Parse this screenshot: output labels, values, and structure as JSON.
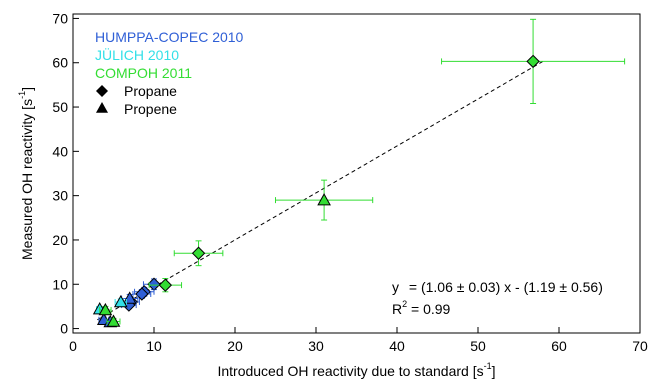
{
  "chart_data": {
    "type": "scatter",
    "xlabel": "Introduced OH reactivity due to standard [s",
    "xlabel_sup": "-1",
    "xlabel_end": "]",
    "ylabel": "Measured OH reactivity [s",
    "ylabel_sup": "-1",
    "ylabel_end": "]",
    "xlim": [
      0,
      70
    ],
    "ylim": [
      -1,
      71
    ],
    "xticks": [
      0,
      10,
      20,
      30,
      40,
      50,
      60,
      70
    ],
    "yticks": [
      0,
      10,
      20,
      30,
      40,
      50,
      60,
      70
    ],
    "legend_placement": "top-left",
    "legend": {
      "campaigns": [
        {
          "name": "HUMPPA-COPEC 2010",
          "color": "#2f5fd6"
        },
        {
          "name": "JÜLICH 2010",
          "color": "#33e0e8"
        },
        {
          "name": "COMPOH 2011",
          "color": "#33dd33"
        }
      ],
      "markers": [
        {
          "name": "Propane",
          "shape": "diamond"
        },
        {
          "name": "Propene",
          "shape": "triangle"
        }
      ]
    },
    "fit": {
      "x_range": [
        3,
        58
      ],
      "slope": 1.06,
      "intercept": -1.19,
      "equation_y": "y",
      "equation_rest": " = (1.06 ± 0.03) x - (1.19 ± 0.56)",
      "r2_label": "R",
      "r2_sup": "2",
      "r2_value": " = 0.99"
    },
    "points": [
      {
        "campaign": "HUMPPA-COPEC 2010",
        "shape": "diamond",
        "x": 10.0,
        "y": 10.0,
        "xerr": 1.3,
        "yerr": 1.2
      },
      {
        "campaign": "HUMPPA-COPEC 2010",
        "shape": "diamond",
        "x": 8.8,
        "y": 8.3,
        "xerr": 1.2,
        "yerr": 1.0
      },
      {
        "campaign": "HUMPPA-COPEC 2010",
        "shape": "diamond",
        "x": 8.5,
        "y": 7.8,
        "xerr": 1.1,
        "yerr": 1.0
      },
      {
        "campaign": "HUMPPA-COPEC 2010",
        "shape": "diamond",
        "x": 7.2,
        "y": 6.0,
        "xerr": 1.0,
        "yerr": 0.9
      },
      {
        "campaign": "HUMPPA-COPEC 2010",
        "shape": "diamond",
        "x": 6.9,
        "y": 5.3,
        "xerr": 0.9,
        "yerr": 0.8
      },
      {
        "campaign": "HUMPPA-COPEC 2010",
        "shape": "triangle",
        "x": 7.0,
        "y": 6.8,
        "xerr": 1.0,
        "yerr": 0.9
      },
      {
        "campaign": "HUMPPA-COPEC 2010",
        "shape": "triangle",
        "x": 3.8,
        "y": 2.0,
        "xerr": 0.6,
        "yerr": 0.6
      },
      {
        "campaign": "HUMPPA-COPEC 2010",
        "shape": "triangle",
        "x": 4.6,
        "y": 1.5,
        "xerr": 0.6,
        "yerr": 0.6
      },
      {
        "campaign": "JÜLICH 2010",
        "shape": "triangle",
        "x": 5.9,
        "y": 6.0,
        "xerr": 0.7,
        "yerr": 0.7
      },
      {
        "campaign": "JÜLICH 2010",
        "shape": "triangle",
        "x": 3.3,
        "y": 4.4,
        "xerr": 0.4,
        "yerr": 0.5
      },
      {
        "campaign": "COMPOH 2011",
        "shape": "triangle",
        "x": 4.0,
        "y": 4.2,
        "xerr": 0.7,
        "yerr": 0.8
      },
      {
        "campaign": "COMPOH 2011",
        "shape": "triangle",
        "x": 5.0,
        "y": 1.6,
        "xerr": 0.8,
        "yerr": 0.7
      },
      {
        "campaign": "COMPOH 2011",
        "shape": "diamond",
        "x": 11.4,
        "y": 9.8,
        "xerr": 2.0,
        "yerr": 1.5
      },
      {
        "campaign": "COMPOH 2011",
        "shape": "diamond",
        "x": 15.5,
        "y": 17.0,
        "xerr": 3.0,
        "yerr": 2.8
      },
      {
        "campaign": "COMPOH 2011",
        "shape": "triangle",
        "x": 31.0,
        "y": 29.0,
        "xerr": 6.0,
        "yerr": 4.5
      },
      {
        "campaign": "COMPOH 2011",
        "shape": "diamond",
        "x": 56.8,
        "y": 60.3,
        "xerr": 11.3,
        "yerr": 9.5
      }
    ]
  }
}
